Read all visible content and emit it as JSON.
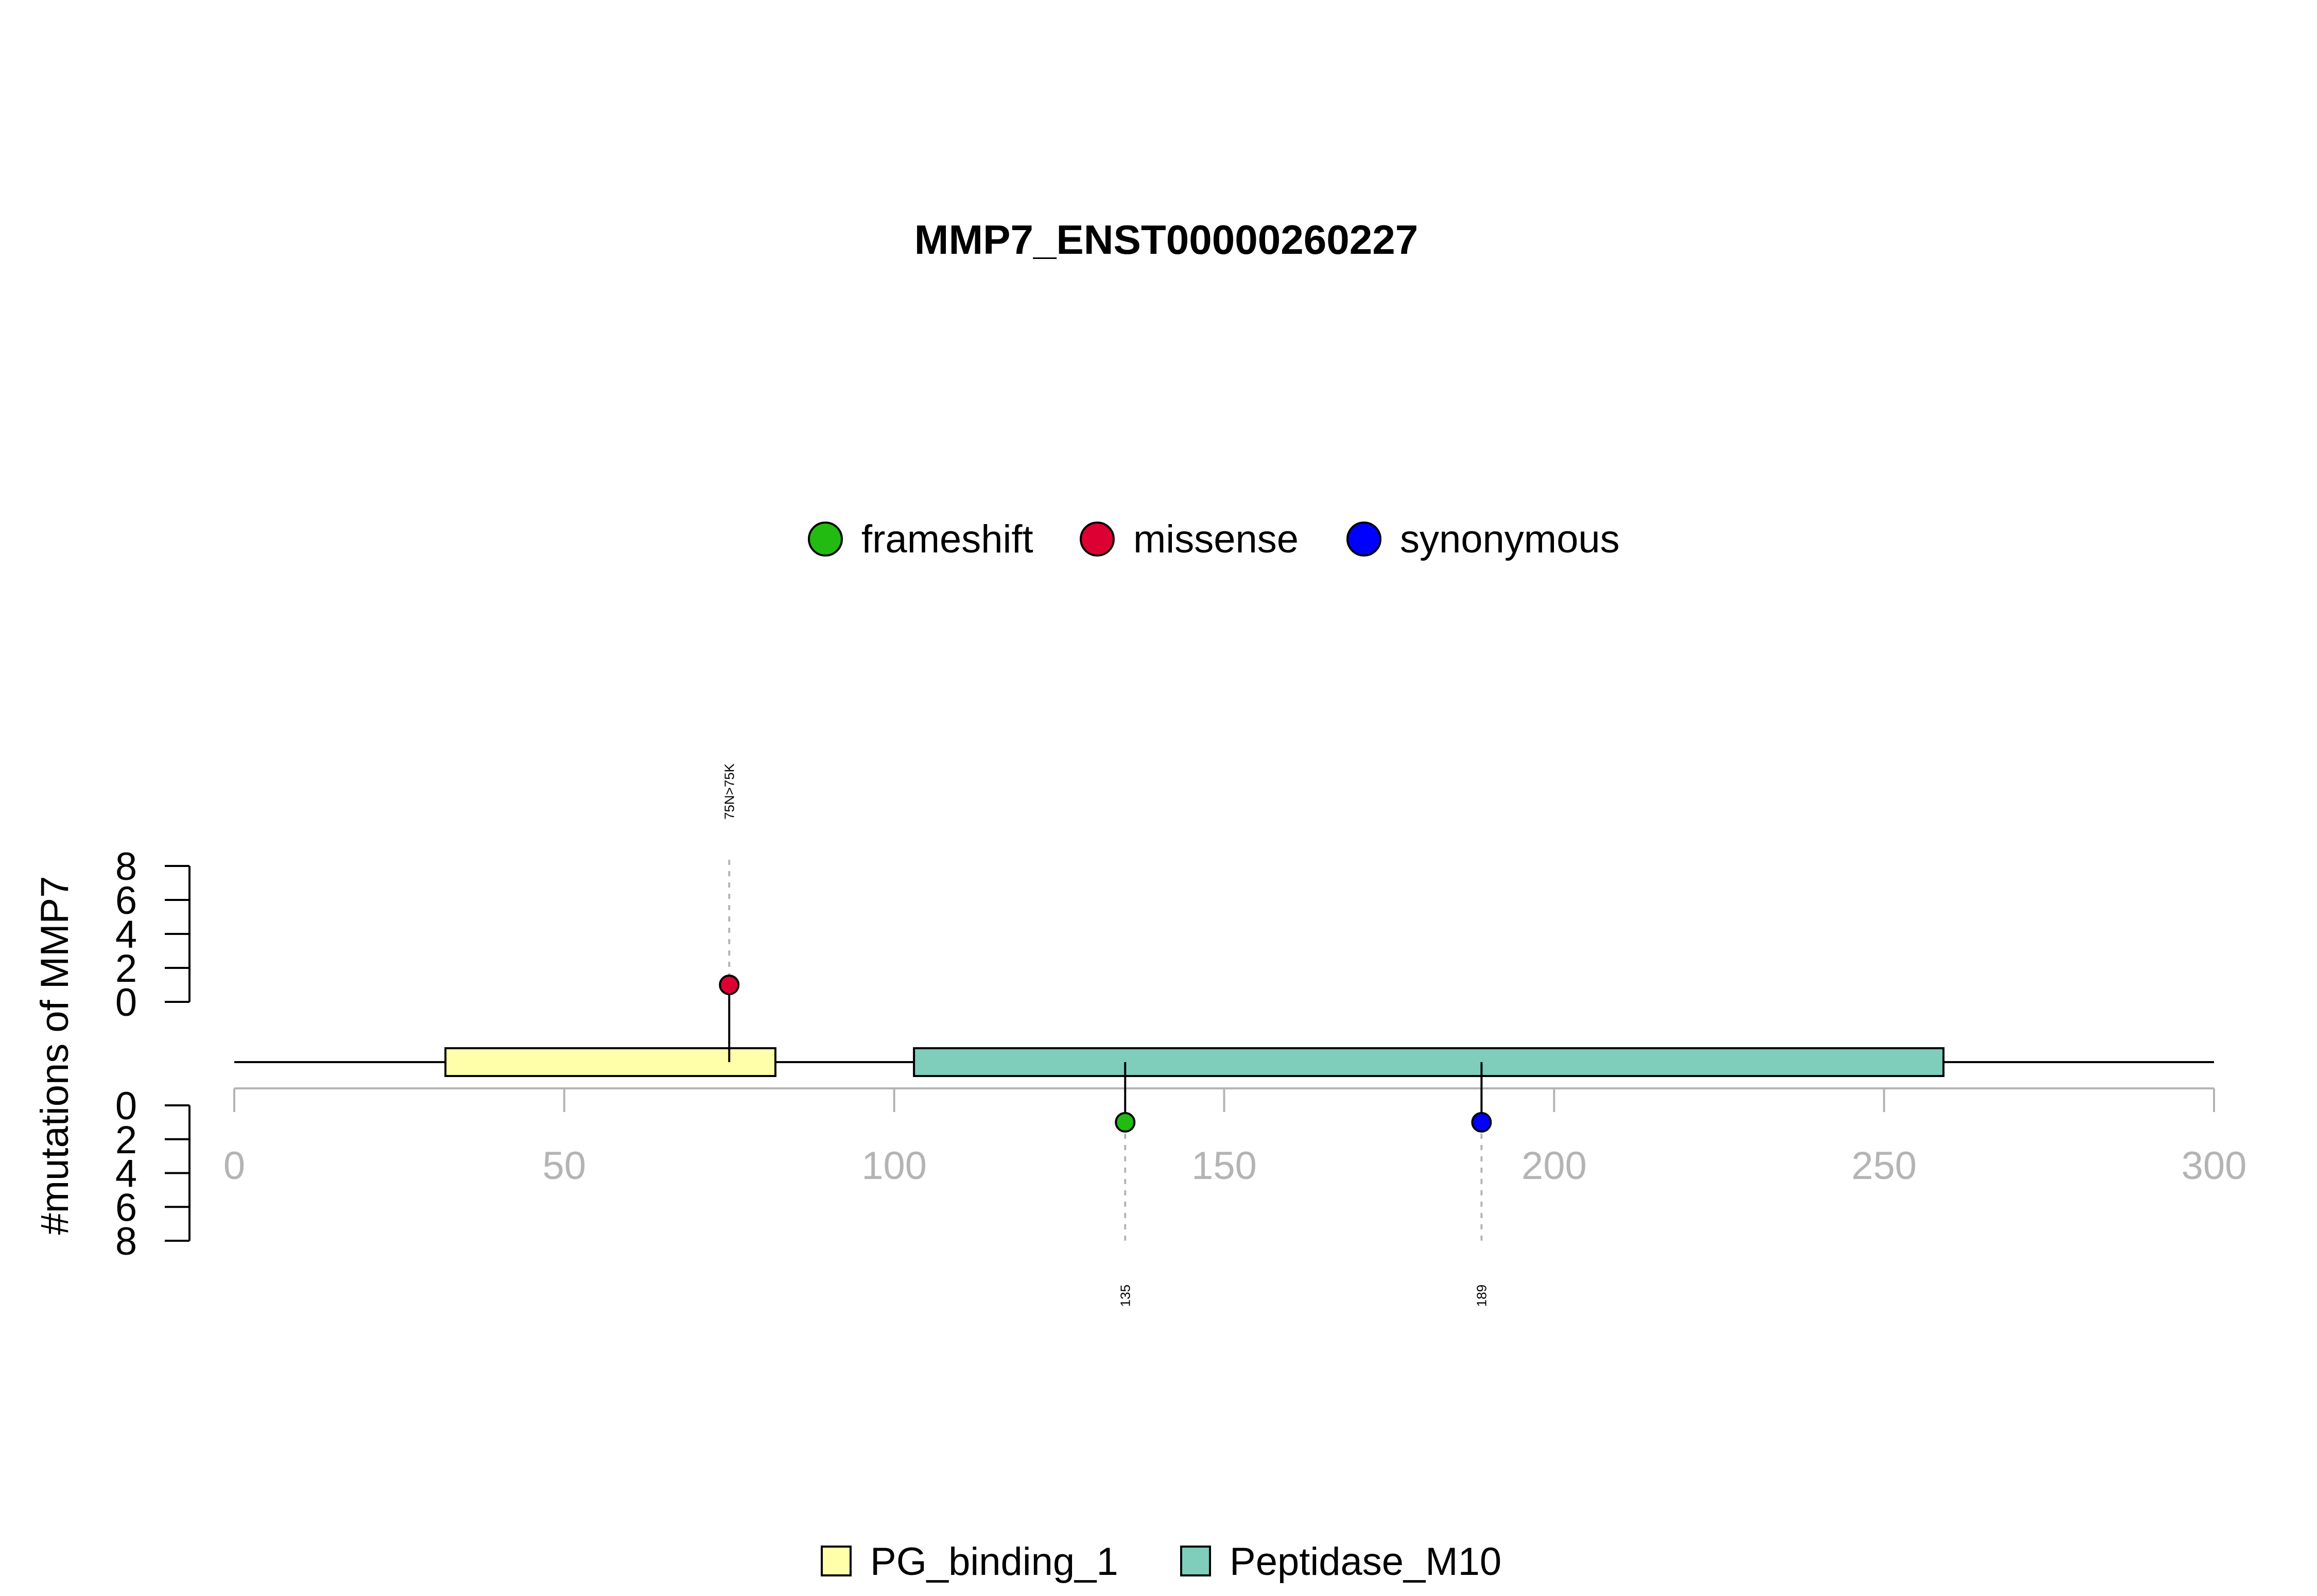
{
  "chart_data": {
    "type": "lollipop",
    "title": "MMP7_ENST00000260227",
    "ylabel": "#mutations of MMP7",
    "xlim": [
      0,
      300
    ],
    "x_ticks": [
      0,
      50,
      100,
      150,
      200,
      250,
      300
    ],
    "y_ticks": [
      0,
      2,
      4,
      6,
      8
    ],
    "y_range": [
      0,
      8
    ],
    "grid": false,
    "protein_length": 300,
    "mutation_types": [
      {
        "name": "frameshift",
        "color": "#22BB11"
      },
      {
        "name": "missense",
        "color": "#DD0033"
      },
      {
        "name": "synonymous",
        "color": "#0000FF"
      }
    ],
    "domains": [
      {
        "name": "PG_binding_1",
        "start": 32,
        "end": 82,
        "color": "#FFFFAA"
      },
      {
        "name": "Peptidase_M10",
        "start": 103,
        "end": 259,
        "color": "#7FCDBB"
      }
    ],
    "mutations": [
      {
        "position": 75,
        "count": 1,
        "type": "missense",
        "side": "top",
        "label": "75N>75K"
      },
      {
        "position": 135,
        "count": 1,
        "type": "frameshift",
        "side": "bottom",
        "label": "135"
      },
      {
        "position": 189,
        "count": 1,
        "type": "synonymous",
        "side": "bottom",
        "label": "189"
      }
    ],
    "legend_position": "top-center",
    "domain_legend_position": "bottom-center"
  }
}
